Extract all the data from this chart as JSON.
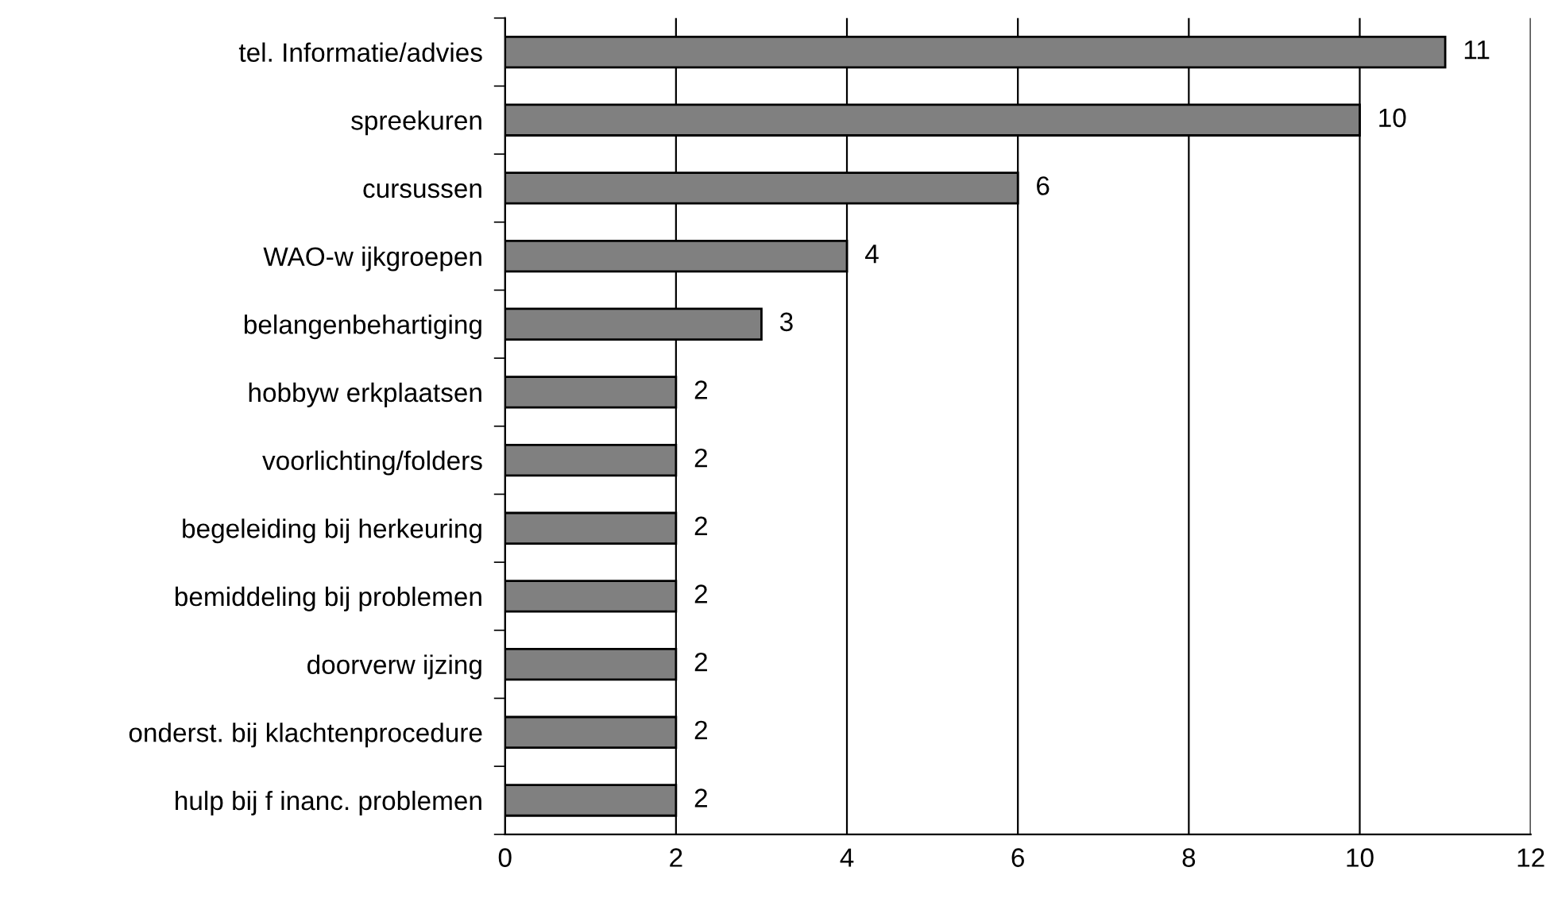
{
  "chart_data": {
    "type": "bar",
    "orientation": "horizontal",
    "categories": [
      "tel. Informatie/advies",
      "spreekuren",
      "cursussen",
      "WAO-w ijkgroepen",
      "belangenbehartiging",
      "hobbyw erkplaatsen",
      "voorlichting/folders",
      "begeleiding bij herkeuring",
      "bemiddeling bij problemen",
      "doorverw ijzing",
      "onderst. bij klachtenprocedure",
      "hulp bij f inanc. problemen"
    ],
    "values": [
      11,
      10,
      6,
      4,
      3,
      2,
      2,
      2,
      2,
      2,
      2,
      2
    ],
    "color": "#808080",
    "xlim": [
      0,
      12
    ],
    "xticks": [
      0,
      2,
      4,
      6,
      8,
      10,
      12
    ],
    "grid": "x",
    "data_labels": true,
    "legend": false
  }
}
